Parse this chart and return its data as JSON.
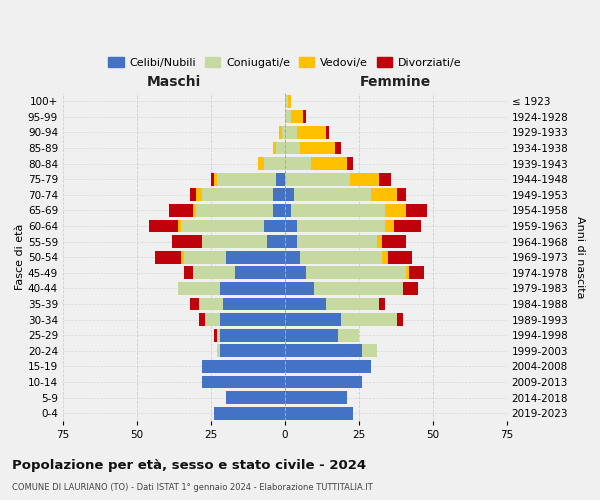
{
  "age_groups": [
    "0-4",
    "5-9",
    "10-14",
    "15-19",
    "20-24",
    "25-29",
    "30-34",
    "35-39",
    "40-44",
    "45-49",
    "50-54",
    "55-59",
    "60-64",
    "65-69",
    "70-74",
    "75-79",
    "80-84",
    "85-89",
    "90-94",
    "95-99",
    "100+"
  ],
  "birth_years": [
    "2019-2023",
    "2014-2018",
    "2009-2013",
    "2004-2008",
    "1999-2003",
    "1994-1998",
    "1989-1993",
    "1984-1988",
    "1979-1983",
    "1974-1978",
    "1969-1973",
    "1964-1968",
    "1959-1963",
    "1954-1958",
    "1949-1953",
    "1944-1948",
    "1939-1943",
    "1934-1938",
    "1929-1933",
    "1924-1928",
    "≤ 1923"
  ],
  "colors": {
    "celibi": "#4472c4",
    "coniugati": "#c5d9a0",
    "vedovi": "#ffc000",
    "divorziati": "#c0000b"
  },
  "males": {
    "celibi": [
      24,
      20,
      28,
      28,
      22,
      22,
      22,
      21,
      22,
      17,
      20,
      6,
      7,
      4,
      4,
      3,
      0,
      0,
      0,
      0,
      0
    ],
    "coniugati": [
      0,
      0,
      0,
      0,
      1,
      1,
      5,
      8,
      14,
      14,
      14,
      22,
      28,
      26,
      24,
      20,
      7,
      3,
      1,
      0,
      0
    ],
    "vedovi": [
      0,
      0,
      0,
      0,
      0,
      0,
      0,
      0,
      0,
      0,
      1,
      0,
      1,
      1,
      2,
      1,
      2,
      1,
      1,
      0,
      0
    ],
    "divorziati": [
      0,
      0,
      0,
      0,
      0,
      1,
      2,
      3,
      0,
      3,
      9,
      10,
      10,
      8,
      2,
      1,
      0,
      0,
      0,
      0,
      0
    ]
  },
  "females": {
    "nubili": [
      23,
      21,
      26,
      29,
      26,
      18,
      19,
      14,
      10,
      7,
      5,
      4,
      4,
      2,
      3,
      0,
      0,
      0,
      0,
      0,
      0
    ],
    "coniugati": [
      0,
      0,
      0,
      0,
      5,
      7,
      19,
      18,
      30,
      34,
      28,
      27,
      30,
      32,
      26,
      22,
      9,
      5,
      4,
      2,
      1
    ],
    "vedovi": [
      0,
      0,
      0,
      0,
      0,
      0,
      0,
      0,
      0,
      1,
      2,
      2,
      3,
      7,
      9,
      10,
      12,
      12,
      10,
      4,
      1
    ],
    "divorziati": [
      0,
      0,
      0,
      0,
      0,
      0,
      2,
      2,
      5,
      5,
      8,
      8,
      9,
      7,
      3,
      4,
      2,
      2,
      1,
      1,
      0
    ]
  },
  "xlim": 75,
  "title": "Popolazione per età, sesso e stato civile - 2024",
  "subtitle": "COMUNE DI LAURIANO (TO) - Dati ISTAT 1° gennaio 2024 - Elaborazione TUTTITALIA.IT",
  "ylabel_left": "Fasce di età",
  "ylabel_right": "Anni di nascita",
  "label_maschi": "Maschi",
  "label_femmine": "Femmine",
  "legend_labels": [
    "Celibi/Nubili",
    "Coniugati/e",
    "Vedovi/e",
    "Divorziati/e"
  ],
  "background_color": "#f0f0f0",
  "grid_color": "#cccccc"
}
